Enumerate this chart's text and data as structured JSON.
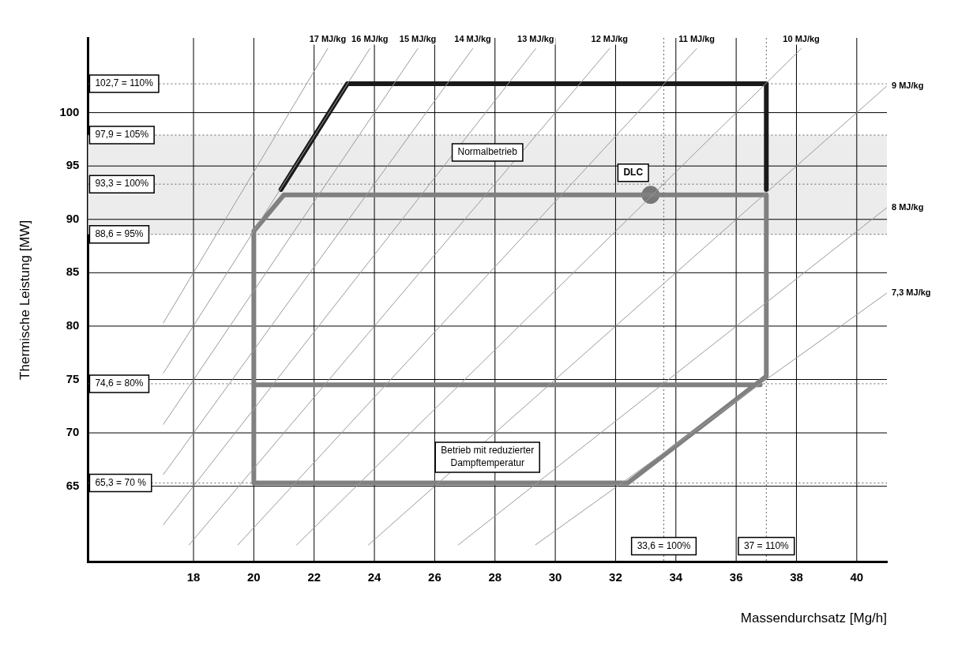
{
  "chart_data": {
    "type": "line",
    "xlabel": "Massendurchsatz [Mg/h]",
    "ylabel": "Thermische Leistung [MW]",
    "xlim": [
      14.5,
      41
    ],
    "ylim": [
      57.9,
      107
    ],
    "xticks": [
      18,
      20,
      22,
      24,
      26,
      28,
      30,
      32,
      34,
      36,
      38,
      40
    ],
    "yticks": [
      65,
      70,
      75,
      80,
      85,
      90,
      95,
      100
    ],
    "grid": true,
    "legend": false,
    "line_style": "solid",
    "series": [
      {
        "name": "17 MJ/kg",
        "color": "#9a9a9a",
        "x": [
          17,
          22.45
        ],
        "values": [
          80.3,
          106
        ]
      },
      {
        "name": "16 MJ/kg",
        "color": "#9a9a9a",
        "x": [
          17,
          23.85
        ],
        "values": [
          75.6,
          106
        ]
      },
      {
        "name": "15 MJ/kg",
        "color": "#9a9a9a",
        "x": [
          17,
          25.44
        ],
        "values": [
          70.8,
          106
        ]
      },
      {
        "name": "14 MJ/kg",
        "color": "#9a9a9a",
        "x": [
          17,
          27.26
        ],
        "values": [
          66.1,
          106
        ]
      },
      {
        "name": "13 MJ/kg",
        "color": "#9a9a9a",
        "x": [
          17,
          29.35
        ],
        "values": [
          61.4,
          106
        ]
      },
      {
        "name": "12 MJ/kg",
        "color": "#9a9a9a",
        "x": [
          17.85,
          31.8
        ],
        "values": [
          59.5,
          106
        ]
      },
      {
        "name": "11 MJ/kg",
        "color": "#9a9a9a",
        "x": [
          19.47,
          34.69
        ],
        "values": [
          59.5,
          106
        ]
      },
      {
        "name": "10 MJ/kg",
        "color": "#9a9a9a",
        "x": [
          21.42,
          38.16
        ],
        "values": [
          59.5,
          106
        ]
      },
      {
        "name": "9 MJ/kg",
        "color": "#9a9a9a",
        "x": [
          23.8,
          41
        ],
        "values": [
          59.5,
          102.5
        ]
      },
      {
        "name": "8 MJ/kg",
        "color": "#9a9a9a",
        "x": [
          26.78,
          41
        ],
        "values": [
          59.5,
          91.1
        ]
      },
      {
        "name": "7,3 MJ/kg",
        "color": "#9a9a9a",
        "x": [
          29.34,
          41
        ],
        "values": [
          59.5,
          83.1
        ]
      },
      {
        "color": "#1a1a1a",
        "x": [
          20.9,
          23.1,
          37,
          37
        ],
        "values": [
          92.8,
          102.7,
          102.7,
          92.8
        ]
      },
      {
        "color": "#808080",
        "x": [
          36.8,
          20,
          20,
          21,
          37,
          37,
          32.4,
          20,
          20
        ],
        "values": [
          74.5,
          74.5,
          88.9,
          92.3,
          92.3,
          75.3,
          65.3,
          65.3,
          74.5
        ]
      },
      {
        "type": "scatter",
        "marker": "circle",
        "color": "#777777",
        "x": [
          33.16
        ],
        "values": [
          92.3
        ]
      }
    ],
    "bands": [
      {
        "axis": "y",
        "from": 88.6,
        "to": 97.9,
        "color": "#ececec",
        "label": "Normalbetrieb"
      }
    ],
    "ref_lines": [
      {
        "axis": "y",
        "value": 102.7,
        "label": "102,7 = 110%",
        "line_style": "dotted"
      },
      {
        "axis": "y",
        "value": 97.9,
        "label": "97,9 = 105%",
        "line_style": "dotted"
      },
      {
        "axis": "y",
        "value": 93.3,
        "label": "93,3 = 100%",
        "line_style": "dotted"
      },
      {
        "axis": "y",
        "value": 88.6,
        "label": "88,6 = 95%",
        "line_style": "dotted"
      },
      {
        "axis": "y",
        "value": 74.6,
        "label": "74,6 = 80%",
        "line_style": "dotted"
      },
      {
        "axis": "y",
        "value": 65.3,
        "label": "65,3 = 70 %",
        "line_style": "dotted"
      },
      {
        "axis": "x",
        "value": 33.6,
        "label": "33,6 = 100%",
        "line_style": "dotted"
      },
      {
        "axis": "x",
        "value": 37,
        "label": "37 = 110%",
        "line_style": "dotted"
      }
    ],
    "annotations": [
      "Betrieb mit reduzierter Dampftemperatur",
      {
        "text": "DLC",
        "x": 33.16,
        "y": 92.3
      }
    ]
  }
}
